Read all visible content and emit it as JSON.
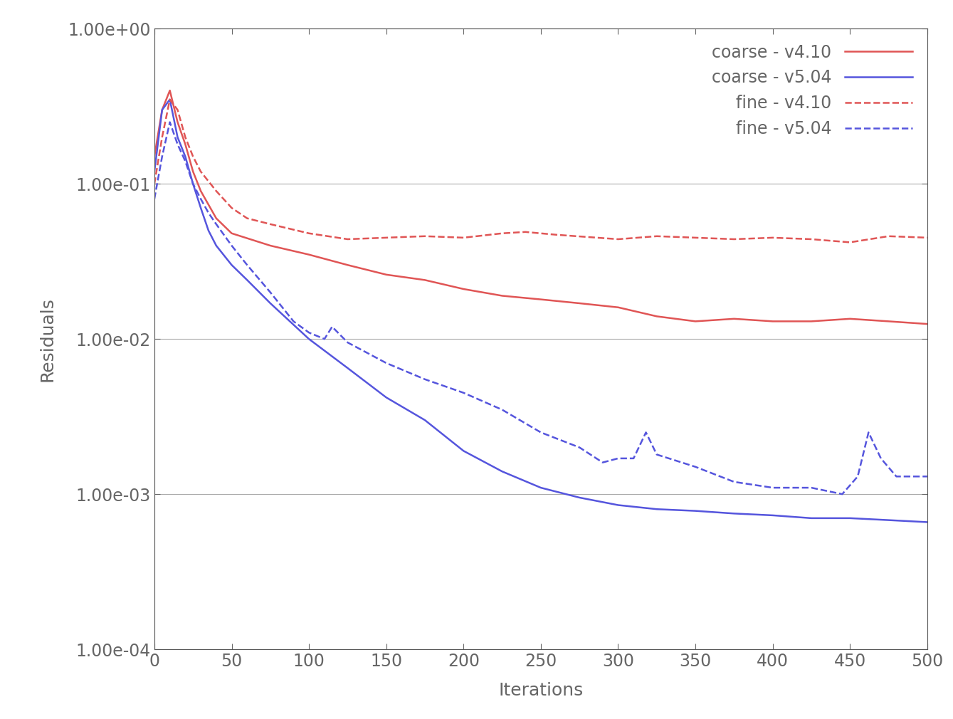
{
  "chart_data": {
    "type": "line",
    "x_label": "Iterations",
    "y_label": "Residuals",
    "log": "y",
    "grid": true,
    "legend": "upper right",
    "xlim": [
      0,
      500
    ],
    "xticks": [
      0,
      50,
      100,
      150,
      200,
      250,
      300,
      350,
      400,
      450,
      500
    ],
    "ylim": [
      0.0001,
      1
    ],
    "yticks": [
      {
        "value": 0.0001,
        "label": "1.00e-04"
      },
      {
        "value": 0.001,
        "label": "1.00e-03"
      },
      {
        "value": 0.01,
        "label": "1.00e-02"
      },
      {
        "value": 0.1,
        "label": "1.00e-01"
      },
      {
        "value": 1,
        "label": "1.00e+00"
      }
    ],
    "series": [
      {
        "name": "coarse - v4.10",
        "color": "#e05555",
        "line_style": "solid",
        "x": [
          0,
          5,
          10,
          15,
          20,
          25,
          30,
          40,
          50,
          75,
          100,
          125,
          150,
          175,
          200,
          225,
          250,
          275,
          300,
          325,
          350,
          375,
          400,
          425,
          450,
          475,
          500
        ],
        "values": [
          0.15,
          0.3,
          0.4,
          0.25,
          0.18,
          0.12,
          0.09,
          0.06,
          0.048,
          0.04,
          0.035,
          0.03,
          0.026,
          0.024,
          0.021,
          0.019,
          0.018,
          0.017,
          0.016,
          0.014,
          0.013,
          0.0135,
          0.013,
          0.013,
          0.0135,
          0.013,
          0.0125
        ]
      },
      {
        "name": "coarse - v5.04",
        "color": "#5555dd",
        "line_style": "solid",
        "x": [
          0,
          5,
          10,
          15,
          20,
          25,
          30,
          35,
          40,
          50,
          60,
          75,
          100,
          125,
          150,
          175,
          200,
          225,
          250,
          275,
          300,
          325,
          350,
          375,
          400,
          425,
          450,
          475,
          500
        ],
        "values": [
          0.12,
          0.3,
          0.35,
          0.2,
          0.15,
          0.1,
          0.07,
          0.05,
          0.04,
          0.03,
          0.024,
          0.017,
          0.01,
          0.0065,
          0.0042,
          0.003,
          0.0019,
          0.0014,
          0.0011,
          0.00095,
          0.00085,
          0.0008,
          0.00078,
          0.00075,
          0.00073,
          0.0007,
          0.0007,
          0.00068,
          0.00066
        ]
      },
      {
        "name": "fine - v4.10",
        "color": "#e05555",
        "line_style": "dashed",
        "x": [
          0,
          5,
          10,
          15,
          20,
          25,
          30,
          40,
          50,
          60,
          75,
          100,
          125,
          150,
          175,
          200,
          225,
          240,
          260,
          300,
          325,
          350,
          375,
          400,
          425,
          450,
          475,
          500
        ],
        "values": [
          0.1,
          0.2,
          0.35,
          0.3,
          0.2,
          0.15,
          0.12,
          0.09,
          0.07,
          0.06,
          0.055,
          0.048,
          0.044,
          0.045,
          0.046,
          0.045,
          0.048,
          0.049,
          0.047,
          0.044,
          0.046,
          0.045,
          0.044,
          0.045,
          0.044,
          0.042,
          0.046,
          0.045
        ]
      },
      {
        "name": "fine - v5.04",
        "color": "#5555dd",
        "line_style": "dashed",
        "x": [
          0,
          5,
          10,
          15,
          20,
          25,
          30,
          35,
          40,
          50,
          60,
          75,
          90,
          100,
          110,
          115,
          125,
          150,
          175,
          200,
          225,
          250,
          275,
          290,
          300,
          310,
          318,
          325,
          350,
          375,
          400,
          425,
          445,
          455,
          462,
          470,
          480,
          500
        ],
        "values": [
          0.08,
          0.15,
          0.25,
          0.18,
          0.14,
          0.1,
          0.08,
          0.065,
          0.055,
          0.04,
          0.03,
          0.02,
          0.013,
          0.011,
          0.01,
          0.012,
          0.0095,
          0.007,
          0.0055,
          0.0045,
          0.0035,
          0.0025,
          0.002,
          0.0016,
          0.0017,
          0.0017,
          0.0025,
          0.0018,
          0.0015,
          0.0012,
          0.0011,
          0.0011,
          0.001,
          0.0013,
          0.0025,
          0.0017,
          0.0013,
          0.0013
        ]
      }
    ]
  }
}
